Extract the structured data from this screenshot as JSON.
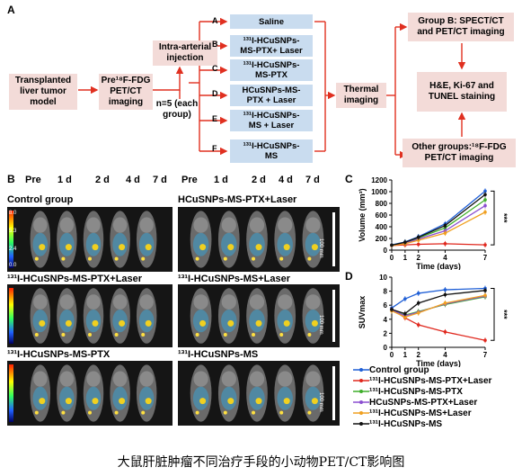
{
  "panel_a": {
    "letter": "A",
    "transplanted": "Transplanted\nliver tumor\nmodel",
    "pre_pet": "Pre¹⁸F-FDG\nPET/CT\nimaging",
    "injection": "Intra-arterial\ninjection",
    "n_groups": "n=5 (each\ngroup)",
    "groups": [
      {
        "letter": "A",
        "label": "Saline"
      },
      {
        "letter": "B",
        "label": "¹³¹I-HCuSNPs-\nMS-PTX+ Laser"
      },
      {
        "letter": "C",
        "label": "¹³¹I-HCuSNPs-\nMS-PTX"
      },
      {
        "letter": "D",
        "label": "HCuSNPs-MS-\nPTX + Laser"
      },
      {
        "letter": "E",
        "label": "¹³¹I-HCuSNPs-\nMS + Laser"
      },
      {
        "letter": "F",
        "label": "¹³¹I-HCuSNPs-\nMS"
      }
    ],
    "thermal": "Thermal\nimaging",
    "group_b": "Group B: SPECT/CT\nand PET/CT imaging",
    "staining": "H&E, Ki-67 and\nTUNEL staining",
    "other": "Other groups:¹⁸F-FDG\nPET/CT imaging"
  },
  "panel_b": {
    "letter": "B",
    "timepoints": [
      "Pre",
      "1 d",
      "2 d",
      "4 d",
      "7 d"
    ],
    "groups": [
      "Control group",
      "HCuSNPs-MS-PTX+Laser",
      "¹³¹I-HCuSNPs-MS-PTX+Laser",
      "¹³¹I-HCuSNPs-MS+Laser",
      "¹³¹I-HCuSNPs-MS-PTX",
      "¹³¹I-HCuSNPs-MS"
    ],
    "colorbar_max": "8.0",
    "colorbar_mid": [
      "5.3",
      "2.4"
    ],
    "colorbar_min": "0.0",
    "scale_label": "100 mm"
  },
  "colors": {
    "control": "#1f5fd6",
    "b": "#e0281e",
    "c": "#3fae2a",
    "d": "#8b4fd0",
    "e": "#f0a020",
    "f": "#111111"
  },
  "chart_data": [
    {
      "type": "line",
      "panel": "C",
      "xlabel": "Time (days)",
      "ylabel": "Volume (mm³)",
      "x": [
        0,
        1,
        2,
        4,
        7
      ],
      "xticks": [
        "0",
        "1",
        "2",
        "4",
        "7"
      ],
      "yticks": [
        "0",
        "200",
        "400",
        "600",
        "800",
        "1000",
        "1200"
      ],
      "ylim": [
        0,
        1200
      ],
      "significance": "***",
      "series": [
        {
          "name": "Control group",
          "values": [
            90,
            140,
            230,
            450,
            1010
          ]
        },
        {
          "name": "¹³¹I-HCuSNPs-MS-PTX+Laser",
          "values": [
            80,
            90,
            100,
            110,
            90
          ]
        },
        {
          "name": "¹³¹I-HCuSNPs-MS-PTX",
          "values": [
            85,
            130,
            210,
            380,
            860
          ]
        },
        {
          "name": "HCuSNPs-MS-PTX+Laser",
          "values": [
            85,
            120,
            190,
            330,
            760
          ]
        },
        {
          "name": "¹³¹I-HCuSNPs-MS+Laser",
          "values": [
            80,
            110,
            170,
            290,
            650
          ]
        },
        {
          "name": "¹³¹I-HCuSNPs-MS",
          "values": [
            85,
            135,
            220,
            420,
            950
          ]
        }
      ]
    },
    {
      "type": "line",
      "panel": "D",
      "xlabel": "Time (days)",
      "ylabel": "SUVmax",
      "x": [
        0,
        1,
        2,
        4,
        7
      ],
      "xticks": [
        "0",
        "1",
        "2",
        "4",
        "7"
      ],
      "yticks": [
        "0",
        "2",
        "4",
        "6",
        "8",
        "10"
      ],
      "ylim": [
        0,
        10
      ],
      "significance": "***",
      "series": [
        {
          "name": "Control group",
          "values": [
            5.6,
            6.9,
            7.7,
            8.2,
            8.4
          ]
        },
        {
          "name": "¹³¹I-HCuSNPs-MS-PTX+Laser",
          "values": [
            5.4,
            4.2,
            3.2,
            2.2,
            1.0
          ]
        },
        {
          "name": "¹³¹I-HCuSNPs-MS-PTX",
          "values": [
            5.3,
            4.6,
            5.1,
            6.1,
            7.2
          ]
        },
        {
          "name": "HCuSNPs-MS-PTX+Laser",
          "values": [
            5.3,
            4.5,
            5.0,
            6.2,
            7.3
          ]
        },
        {
          "name": "¹³¹I-HCuSNPs-MS+Laser",
          "values": [
            5.2,
            4.3,
            4.9,
            6.3,
            7.4
          ]
        },
        {
          "name": "¹³¹I-HCuSNPs-MS",
          "values": [
            5.4,
            4.8,
            6.3,
            7.5,
            8.1
          ]
        }
      ]
    }
  ],
  "legend": [
    "Control group",
    "¹³¹I-HCuSNPs-MS-PTX+Laser",
    "¹³¹I-HCuSNPs-MS-PTX",
    "HCuSNPs-MS-PTX+Laser",
    "¹³¹I-HCuSNPs-MS+Laser",
    "¹³¹I-HCuSNPs-MS"
  ],
  "caption": "大鼠肝脏肿瘤不同治疗手段的小动物PET/CT影响图"
}
